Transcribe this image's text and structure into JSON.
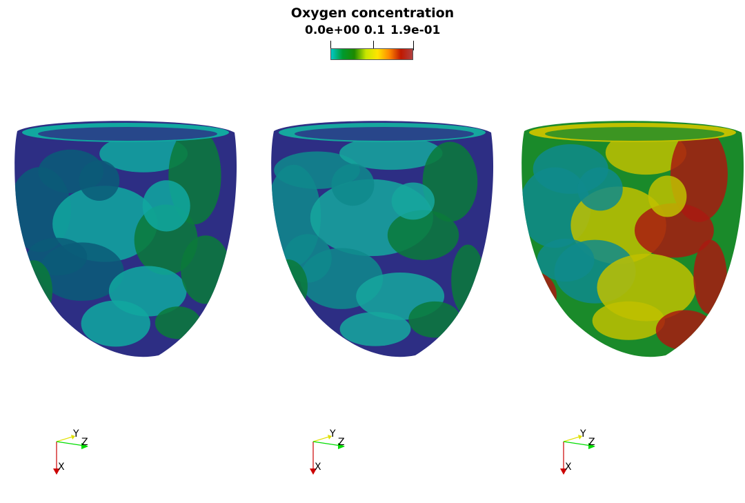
{
  "colorbar": {
    "title": "Oxygen concentration",
    "tick_labels": [
      "0.0e+00",
      "0.1",
      "1.9e-01"
    ],
    "colormap": [
      "#00c8c8",
      "#009a2e",
      "#1d8a00",
      "#c8e600",
      "#ffe400",
      "#ff8a00",
      "#c01800",
      "#b04040"
    ]
  },
  "views": [
    {
      "dominant_levels": "low",
      "colors": [
        "#2d2e84",
        "#0a5c78",
        "#11a8a0",
        "#0a7a3a"
      ]
    },
    {
      "dominant_levels": "low-mid",
      "colors": [
        "#2d2e84",
        "#0f8a8c",
        "#16a79e",
        "#0a7a3a"
      ]
    },
    {
      "dominant_levels": "mid-high",
      "colors": [
        "#1a8a2a",
        "#0f8a8c",
        "#c0c000",
        "#a81a10"
      ]
    }
  ],
  "axes": {
    "x_label": "X",
    "y_label": "Y",
    "z_label": "Z",
    "x_color": "#cc0000",
    "y_color": "#e0e000",
    "z_color": "#00dd00"
  }
}
